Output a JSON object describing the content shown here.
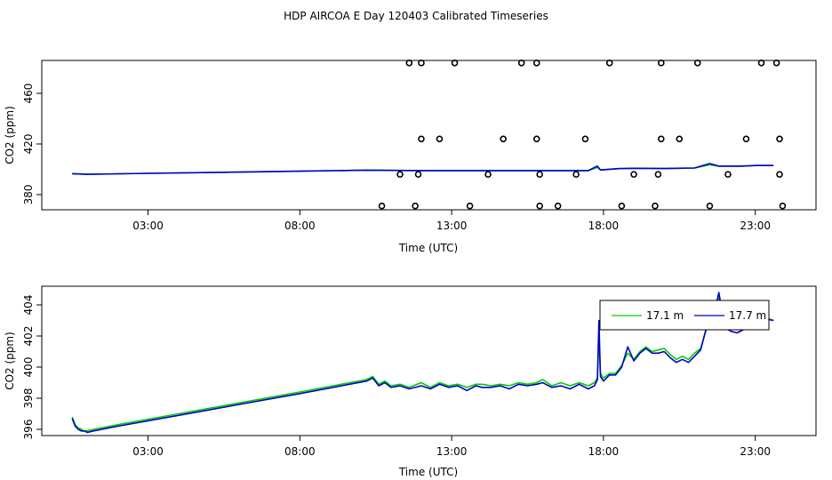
{
  "title": "HDP AIRCOA E  Day 120403  Calibrated Timeseries",
  "colors": {
    "series1": "#00cc00",
    "series2": "#0000cc",
    "axis": "#000000",
    "background": "#ffffff"
  },
  "chart_data": [
    {
      "type": "line",
      "panel": "top",
      "xlabel": "Time (UTC)",
      "ylabel": "CO2 (ppm)",
      "xlim": [
        -0.5,
        25
      ],
      "ylim": [
        368,
        486
      ],
      "xticks": [
        3,
        8,
        13,
        18,
        23
      ],
      "xtick_labels": [
        "03:00",
        "08:00",
        "13:00",
        "18:00",
        "23:00"
      ],
      "yticks": [
        380,
        420,
        460
      ],
      "ytick_labels": [
        "380",
        "420",
        "460"
      ],
      "grid": false,
      "series": [
        {
          "color": "#00cc00",
          "x": [
            0.5,
            1.0,
            3.0,
            6.0,
            8.0,
            10.2,
            12.0,
            14.0,
            16.0,
            17.5,
            17.8,
            17.9,
            18.5,
            19.0,
            20.0,
            21.0,
            21.5,
            21.8,
            22.5,
            23.0,
            23.6
          ],
          "y": [
            396.5,
            396,
            396.8,
            397.8,
            398.5,
            399.3,
            399,
            399,
            399,
            399,
            401.5,
            399.5,
            400.5,
            400.8,
            400.6,
            401,
            403.5,
            402.5,
            402.5,
            403,
            403
          ]
        },
        {
          "color": "#0000cc",
          "x": [
            0.5,
            1.0,
            3.0,
            6.0,
            8.0,
            10.2,
            12.0,
            14.0,
            16.0,
            17.5,
            17.8,
            17.9,
            18.5,
            19.0,
            20.0,
            21.0,
            21.5,
            21.8,
            22.5,
            23.0,
            23.6
          ],
          "y": [
            396.5,
            396,
            396.8,
            397.8,
            398.5,
            399.3,
            399,
            399,
            399,
            399,
            402.5,
            399.5,
            400.5,
            400.8,
            400.6,
            401,
            404.5,
            402.5,
            402.5,
            403,
            403
          ]
        }
      ],
      "markers": {
        "shape": "open-circle",
        "points": [
          {
            "x": 11.6,
            "y": 484
          },
          {
            "x": 12.0,
            "y": 484
          },
          {
            "x": 13.1,
            "y": 484
          },
          {
            "x": 15.3,
            "y": 484
          },
          {
            "x": 15.8,
            "y": 484
          },
          {
            "x": 18.2,
            "y": 484
          },
          {
            "x": 19.9,
            "y": 484
          },
          {
            "x": 21.1,
            "y": 484
          },
          {
            "x": 23.2,
            "y": 484
          },
          {
            "x": 23.7,
            "y": 484
          },
          {
            "x": 12.0,
            "y": 424
          },
          {
            "x": 12.6,
            "y": 424
          },
          {
            "x": 14.7,
            "y": 424
          },
          {
            "x": 15.8,
            "y": 424
          },
          {
            "x": 17.4,
            "y": 424
          },
          {
            "x": 19.9,
            "y": 424
          },
          {
            "x": 20.5,
            "y": 424
          },
          {
            "x": 22.7,
            "y": 424
          },
          {
            "x": 23.8,
            "y": 424
          },
          {
            "x": 11.3,
            "y": 396
          },
          {
            "x": 11.9,
            "y": 396
          },
          {
            "x": 14.2,
            "y": 396
          },
          {
            "x": 15.9,
            "y": 396
          },
          {
            "x": 17.1,
            "y": 396
          },
          {
            "x": 19.0,
            "y": 396
          },
          {
            "x": 19.8,
            "y": 396
          },
          {
            "x": 22.1,
            "y": 396
          },
          {
            "x": 23.8,
            "y": 396
          },
          {
            "x": 10.7,
            "y": 371
          },
          {
            "x": 11.8,
            "y": 371
          },
          {
            "x": 13.6,
            "y": 371
          },
          {
            "x": 15.9,
            "y": 371
          },
          {
            "x": 16.5,
            "y": 371
          },
          {
            "x": 18.6,
            "y": 371
          },
          {
            "x": 19.7,
            "y": 371
          },
          {
            "x": 21.5,
            "y": 371
          },
          {
            "x": 23.9,
            "y": 371
          }
        ]
      }
    },
    {
      "type": "line",
      "panel": "bottom",
      "xlabel": "Time (UTC)",
      "ylabel": "CO2 (ppm)",
      "xlim": [
        -0.5,
        25
      ],
      "ylim": [
        395.6,
        405.2
      ],
      "xticks": [
        3,
        8,
        13,
        18,
        23
      ],
      "xtick_labels": [
        "03:00",
        "08:00",
        "13:00",
        "18:00",
        "23:00"
      ],
      "yticks": [
        396,
        398,
        400,
        402,
        404
      ],
      "ytick_labels": [
        "396",
        "398",
        "400",
        "402",
        "404"
      ],
      "grid": false,
      "legend": {
        "placement": "top-right",
        "entries": [
          {
            "label": "17.1 m",
            "color": "#00cc00"
          },
          {
            "label": "17.7 m",
            "color": "#0000cc"
          }
        ]
      },
      "series": [
        {
          "name": "17.1 m",
          "color": "#00cc00",
          "x": [
            0.5,
            0.6,
            0.7,
            0.8,
            0.9,
            1.0,
            1.2,
            2.0,
            4.0,
            6.0,
            8.0,
            10.2,
            10.4,
            10.6,
            10.8,
            11.0,
            11.3,
            11.6,
            12.0,
            12.3,
            12.6,
            12.9,
            13.2,
            13.5,
            13.8,
            14.0,
            14.3,
            14.6,
            14.9,
            15.2,
            15.5,
            15.8,
            16.0,
            16.3,
            16.6,
            16.9,
            17.2,
            17.5,
            17.7,
            17.8,
            17.85,
            17.9,
            18.0,
            18.2,
            18.4,
            18.6,
            18.8,
            19.0,
            19.2,
            19.4,
            19.6,
            19.8,
            20.0,
            20.2,
            20.4,
            20.6,
            20.8,
            21.0,
            21.2,
            21.4,
            21.6,
            21.8,
            22.0,
            22.2,
            22.4,
            22.6,
            22.8,
            23.0,
            23.3,
            23.6
          ],
          "y": [
            396.8,
            396.3,
            396.1,
            396.0,
            395.9,
            395.9,
            396.0,
            396.3,
            397.0,
            397.7,
            398.4,
            399.2,
            399.4,
            398.9,
            399.1,
            398.8,
            398.9,
            398.7,
            399.0,
            398.7,
            399.0,
            398.8,
            398.9,
            398.7,
            398.9,
            398.9,
            398.8,
            398.9,
            398.8,
            399.0,
            398.9,
            399.0,
            399.2,
            398.8,
            399.0,
            398.8,
            399.0,
            398.8,
            399.0,
            399.3,
            402.0,
            399.6,
            399.3,
            399.6,
            399.6,
            400.1,
            400.9,
            400.5,
            401.0,
            401.3,
            401.0,
            401.1,
            401.2,
            400.8,
            400.5,
            400.7,
            400.5,
            400.9,
            401.2,
            402.5,
            402.9,
            404.5,
            402.8,
            402.5,
            402.4,
            402.5,
            402.9,
            403.1,
            403.2,
            403.0
          ]
        },
        {
          "name": "17.7 m",
          "color": "#0000cc",
          "x": [
            0.5,
            0.6,
            0.7,
            0.8,
            0.9,
            1.0,
            1.2,
            2.0,
            4.0,
            6.0,
            8.0,
            10.2,
            10.4,
            10.6,
            10.8,
            11.0,
            11.3,
            11.6,
            12.0,
            12.3,
            12.6,
            12.9,
            13.2,
            13.5,
            13.8,
            14.0,
            14.3,
            14.6,
            14.9,
            15.2,
            15.5,
            15.8,
            16.0,
            16.3,
            16.6,
            16.9,
            17.2,
            17.5,
            17.7,
            17.8,
            17.85,
            17.9,
            18.0,
            18.2,
            18.4,
            18.6,
            18.8,
            19.0,
            19.2,
            19.4,
            19.6,
            19.8,
            20.0,
            20.2,
            20.4,
            20.6,
            20.8,
            21.0,
            21.2,
            21.4,
            21.6,
            21.8,
            22.0,
            22.2,
            22.4,
            22.6,
            22.8,
            23.0,
            23.3,
            23.6
          ],
          "y": [
            396.7,
            396.2,
            396.0,
            395.9,
            395.9,
            395.8,
            395.9,
            396.2,
            396.9,
            397.6,
            398.3,
            399.1,
            399.3,
            398.8,
            399.0,
            398.7,
            398.8,
            398.6,
            398.8,
            398.6,
            398.9,
            398.7,
            398.8,
            398.5,
            398.8,
            398.7,
            398.7,
            398.8,
            398.6,
            398.9,
            398.8,
            398.9,
            399.0,
            398.7,
            398.8,
            398.6,
            398.9,
            398.6,
            398.8,
            399.2,
            403.0,
            399.4,
            399.1,
            399.5,
            399.5,
            400.0,
            401.3,
            400.4,
            400.9,
            401.2,
            400.9,
            400.9,
            401.0,
            400.6,
            400.3,
            400.5,
            400.3,
            400.7,
            401.1,
            402.6,
            403.0,
            404.8,
            402.5,
            402.3,
            402.2,
            402.4,
            402.8,
            403.0,
            403.1,
            403.0
          ]
        }
      ]
    }
  ]
}
